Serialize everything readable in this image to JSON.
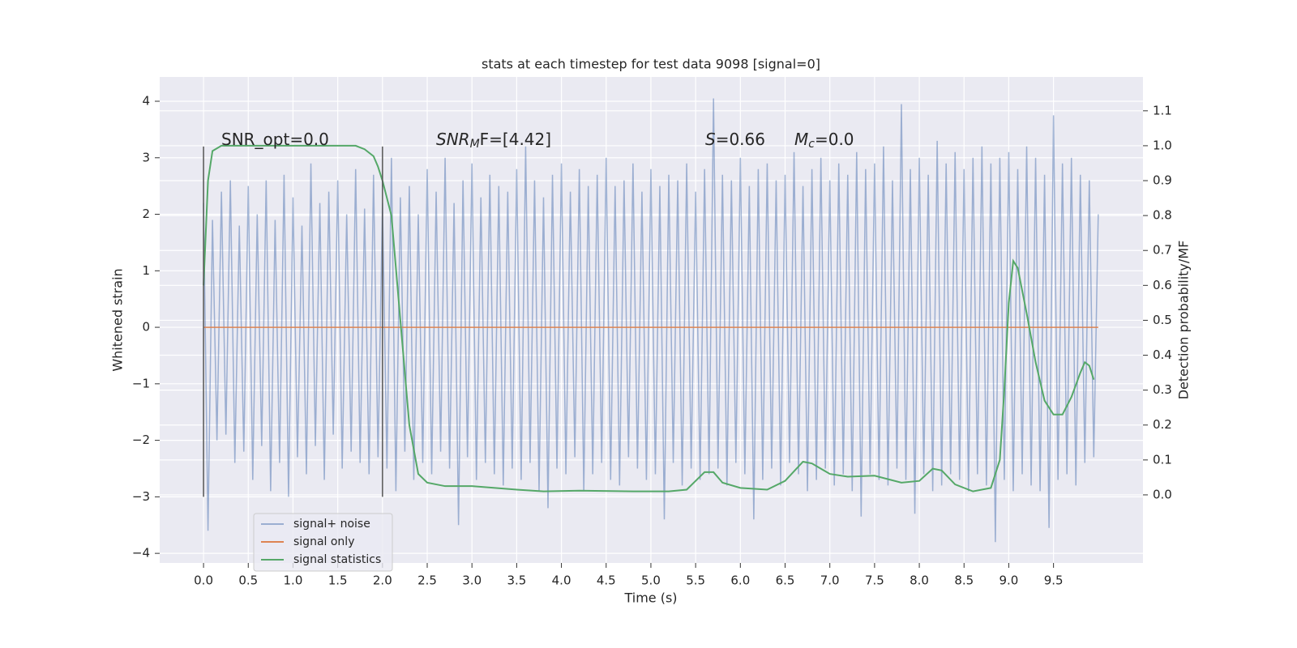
{
  "chart_data": {
    "type": "line",
    "title": "stats at each timestep for test data 9098 [signal=0]",
    "xlabel": "Time (s)",
    "ylabel": "Whitened strain",
    "y2label": "Detection probability/MF",
    "xlim": [
      -0.49,
      10.5
    ],
    "ylim": [
      -4.17,
      4.43
    ],
    "y2lim": [
      -0.195,
      1.197
    ],
    "xticks": [
      {
        "value": 0,
        "label": "0.0"
      },
      {
        "value": 0.5,
        "label": "0.5"
      },
      {
        "value": 1,
        "label": "1.0"
      },
      {
        "value": 1.5,
        "label": "1.5"
      },
      {
        "value": 2,
        "label": "2.0"
      },
      {
        "value": 2.5,
        "label": "2.5"
      },
      {
        "value": 3,
        "label": "3.0"
      },
      {
        "value": 3.5,
        "label": "3.5"
      },
      {
        "value": 4,
        "label": "4.0"
      },
      {
        "value": 4.5,
        "label": "4.5"
      },
      {
        "value": 5,
        "label": "5.0"
      },
      {
        "value": 5.5,
        "label": "5.5"
      },
      {
        "value": 6,
        "label": "6.0"
      },
      {
        "value": 6.5,
        "label": "6.5"
      },
      {
        "value": 7,
        "label": "7.0"
      },
      {
        "value": 7.5,
        "label": "7.5"
      },
      {
        "value": 8,
        "label": "8.0"
      },
      {
        "value": 8.5,
        "label": "8.5"
      },
      {
        "value": 9,
        "label": "9.0"
      },
      {
        "value": 9.5,
        "label": "9.5"
      }
    ],
    "yticks": [
      {
        "value": -4,
        "label": "−4"
      },
      {
        "value": -3,
        "label": "−3"
      },
      {
        "value": -2,
        "label": "−2"
      },
      {
        "value": -1,
        "label": "−1"
      },
      0,
      1,
      2,
      3,
      4
    ],
    "y2ticks": [
      {
        "value": 0,
        "label": "0.0"
      },
      {
        "value": 0.1,
        "label": "0.1"
      },
      {
        "value": 0.2,
        "label": "0.2"
      },
      {
        "value": 0.3,
        "label": "0.3"
      },
      {
        "value": 0.4,
        "label": "0.4"
      },
      {
        "value": 0.5,
        "label": "0.5"
      },
      {
        "value": 0.6,
        "label": "0.6"
      },
      {
        "value": 0.7,
        "label": "0.7"
      },
      {
        "value": 0.8,
        "label": "0.8"
      },
      {
        "value": 0.9,
        "label": "0.9"
      },
      {
        "value": 1,
        "label": "1.0"
      },
      {
        "value": 1.1,
        "label": "1.1"
      }
    ],
    "grid": true,
    "legend": "lower left",
    "series": [
      {
        "name": "signal+ noise",
        "color": "#4c72b0",
        "alpha": 0.5,
        "x": [
          0,
          0.05,
          0.1,
          0.15,
          0.2,
          0.25,
          0.3,
          0.35,
          0.4,
          0.45,
          0.5,
          0.55,
          0.6,
          0.65,
          0.7,
          0.75,
          0.8,
          0.85,
          0.9,
          0.95,
          1,
          1.05,
          1.1,
          1.15,
          1.2,
          1.25,
          1.3,
          1.35,
          1.4,
          1.45,
          1.5,
          1.55,
          1.6,
          1.65,
          1.7,
          1.75,
          1.8,
          1.85,
          1.9,
          1.95,
          2,
          2.05,
          2.1,
          2.15,
          2.2,
          2.25,
          2.3,
          2.35,
          2.4,
          2.45,
          2.5,
          2.55,
          2.6,
          2.65,
          2.7,
          2.75,
          2.8,
          2.85,
          2.9,
          2.95,
          3,
          3.05,
          3.1,
          3.15,
          3.2,
          3.25,
          3.3,
          3.35,
          3.4,
          3.45,
          3.5,
          3.55,
          3.6,
          3.65,
          3.7,
          3.75,
          3.8,
          3.85,
          3.9,
          3.95,
          4,
          4.05,
          4.1,
          4.15,
          4.2,
          4.25,
          4.3,
          4.35,
          4.4,
          4.45,
          4.5,
          4.55,
          4.6,
          4.65,
          4.7,
          4.75,
          4.8,
          4.85,
          4.9,
          4.95,
          5,
          5.05,
          5.1,
          5.15,
          5.2,
          5.25,
          5.3,
          5.35,
          5.4,
          5.45,
          5.5,
          5.55,
          5.6,
          5.65,
          5.7,
          5.75,
          5.8,
          5.85,
          5.9,
          5.95,
          6,
          6.05,
          6.1,
          6.15,
          6.2,
          6.25,
          6.3,
          6.35,
          6.4,
          6.45,
          6.5,
          6.55,
          6.6,
          6.65,
          6.7,
          6.75,
          6.8,
          6.85,
          6.9,
          6.95,
          7,
          7.05,
          7.1,
          7.15,
          7.2,
          7.25,
          7.3,
          7.35,
          7.4,
          7.45,
          7.5,
          7.55,
          7.6,
          7.65,
          7.7,
          7.75,
          7.8,
          7.85,
          7.9,
          7.95,
          8,
          8.05,
          8.1,
          8.15,
          8.2,
          8.25,
          8.3,
          8.35,
          8.4,
          8.45,
          8.5,
          8.55,
          8.6,
          8.65,
          8.7,
          8.75,
          8.8,
          8.85,
          8.9,
          8.95,
          9,
          9.05,
          9.1,
          9.15,
          9.2,
          9.25,
          9.3,
          9.35,
          9.4,
          9.45,
          9.5,
          9.55,
          9.6,
          9.65,
          9.7,
          9.75,
          9.8,
          9.85,
          9.9,
          9.95,
          10
        ],
        "values": [
          2.2,
          -3.6,
          1.9,
          -2.0,
          2.4,
          -1.9,
          2.6,
          -2.4,
          1.8,
          -2.2,
          2.5,
          -2.7,
          2.0,
          -2.1,
          2.6,
          -2.9,
          1.9,
          -2.4,
          2.7,
          -3.0,
          2.3,
          -2.3,
          1.8,
          -2.6,
          2.9,
          -2.1,
          2.2,
          -2.7,
          2.4,
          -1.9,
          2.6,
          -2.5,
          2.0,
          -2.2,
          2.8,
          -2.4,
          2.1,
          -2.6,
          2.7,
          -2.3,
          2.2,
          -2.5,
          3.0,
          -2.9,
          2.3,
          -2.2,
          2.5,
          -2.7,
          2.0,
          -2.4,
          2.8,
          -2.6,
          2.4,
          -2.2,
          3.0,
          -2.5,
          2.2,
          -3.5,
          2.6,
          -2.3,
          2.9,
          -2.7,
          2.3,
          -2.4,
          2.7,
          -2.6,
          2.5,
          -2.8,
          2.4,
          -2.5,
          2.8,
          -2.7,
          3.2,
          -2.4,
          2.6,
          -2.9,
          2.3,
          -3.2,
          2.7,
          -2.5,
          2.9,
          -2.6,
          2.4,
          -2.3,
          2.8,
          -2.9,
          2.5,
          -2.6,
          2.7,
          -2.4,
          3.0,
          -2.7,
          2.5,
          -2.8,
          2.6,
          -2.3,
          2.9,
          -2.5,
          2.4,
          -2.7,
          2.8,
          -2.6,
          2.5,
          -3.4,
          2.7,
          -2.4,
          2.6,
          -2.8,
          2.9,
          -2.5,
          2.4,
          -2.7,
          2.8,
          -2.6,
          4.05,
          -2.5,
          2.7,
          -2.8,
          2.6,
          -2.4,
          3.0,
          -2.6,
          2.5,
          -3.4,
          2.8,
          -2.7,
          2.9,
          -2.5,
          2.6,
          -2.8,
          2.7,
          -2.4,
          3.1,
          -2.6,
          2.5,
          -2.9,
          2.8,
          -2.7,
          3.0,
          -2.5,
          2.6,
          -2.8,
          2.9,
          -2.6,
          2.7,
          -2.9,
          3.1,
          -3.35,
          2.8,
          -2.6,
          2.9,
          -2.7,
          3.2,
          -2.8,
          2.6,
          -2.5,
          3.95,
          -2.7,
          2.8,
          -3.3,
          3.0,
          -2.6,
          2.7,
          -2.9,
          3.3,
          -2.8,
          2.9,
          -2.6,
          3.1,
          -2.7,
          2.8,
          -2.9,
          3.0,
          -2.6,
          3.2,
          -2.8,
          2.9,
          -3.8,
          3.0,
          -2.7,
          3.1,
          -2.9,
          2.8,
          -2.6,
          3.2,
          -2.8,
          3.0,
          -2.9,
          2.7,
          -3.55,
          3.75,
          -2.7,
          2.9,
          -2.6,
          3.0,
          -2.8,
          2.7,
          -2.4,
          2.6,
          -2.3,
          2.0
        ]
      },
      {
        "name": "signal only",
        "color": "#dd8452",
        "x": [
          0,
          10
        ],
        "values": [
          0,
          0
        ]
      },
      {
        "name": "signal statistics",
        "color": "#55a868",
        "axis": "y2",
        "x": [
          0,
          0.05,
          0.1,
          0.2,
          0.5,
          1,
          1.5,
          1.7,
          1.8,
          1.9,
          1.95,
          2,
          2.1,
          2.2,
          2.3,
          2.4,
          2.5,
          2.7,
          3,
          3.5,
          3.8,
          4.2,
          4.8,
          5.2,
          5.4,
          5.5,
          5.6,
          5.7,
          5.8,
          6,
          6.3,
          6.5,
          6.7,
          6.8,
          7,
          7.2,
          7.5,
          7.8,
          8,
          8.15,
          8.25,
          8.4,
          8.6,
          8.8,
          8.9,
          8.95,
          9,
          9.05,
          9.1,
          9.2,
          9.3,
          9.4,
          9.5,
          9.6,
          9.7,
          9.8,
          9.85,
          9.9,
          9.95
        ],
        "values": [
          0.6,
          0.9,
          0.985,
          1,
          1,
          1,
          1,
          1,
          0.99,
          0.97,
          0.94,
          0.9,
          0.8,
          0.5,
          0.2,
          0.06,
          0.035,
          0.025,
          0.025,
          0.015,
          0.01,
          0.012,
          0.01,
          0.01,
          0.015,
          0.04,
          0.065,
          0.065,
          0.035,
          0.02,
          0.015,
          0.04,
          0.095,
          0.09,
          0.06,
          0.052,
          0.055,
          0.035,
          0.04,
          0.075,
          0.07,
          0.03,
          0.01,
          0.02,
          0.1,
          0.3,
          0.55,
          0.67,
          0.65,
          0.52,
          0.38,
          0.27,
          0.23,
          0.23,
          0.28,
          0.35,
          0.38,
          0.37,
          0.33
        ]
      }
    ],
    "vlines": [
      {
        "x": 0,
        "ymin": -3,
        "ymax": 3.2
      },
      {
        "x": 2,
        "ymin": -3,
        "ymax": 3.2
      }
    ],
    "annotations": [
      [
        {
          "text": "SNR_opt=0.0"
        }
      ],
      [
        {
          "text": "SNR",
          "italic": true
        },
        {
          "text": "M",
          "italic": true,
          "sub": true
        },
        {
          "text": "F=[4.42]"
        }
      ],
      [
        {
          "text": "S",
          "italic": true
        },
        {
          "text": "=0.66"
        }
      ],
      [
        {
          "text": "M",
          "italic": true
        },
        {
          "text": "c",
          "italic": true,
          "sub": true
        },
        {
          "text": "=0.0"
        }
      ]
    ]
  }
}
